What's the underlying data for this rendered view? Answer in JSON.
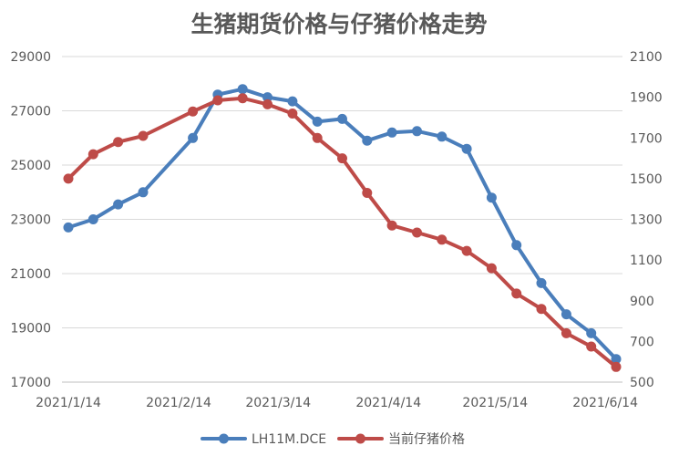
{
  "chart_data": {
    "type": "line",
    "title": "生猪期货价格与仔猪价格走势",
    "x": [
      "2021/1/14",
      "2021/1/21",
      "2021/1/28",
      "2021/2/4",
      "2021/2/18",
      "2021/2/25",
      "2021/3/4",
      "2021/3/11",
      "2021/3/18",
      "2021/3/25",
      "2021/4/1",
      "2021/4/8",
      "2021/4/15",
      "2021/4/22",
      "2021/4/29",
      "2021/5/6",
      "2021/5/13",
      "2021/5/20",
      "2021/5/27",
      "2021/6/3",
      "2021/6/10",
      "2021/6/17"
    ],
    "x_ticks": [
      "2021/1/14",
      "2021/2/14",
      "2021/3/14",
      "2021/4/14",
      "2021/5/14",
      "2021/6/14"
    ],
    "y_left": {
      "range": [
        17000,
        29000
      ],
      "ticks": [
        "17000",
        "19000",
        "21000",
        "23000",
        "25000",
        "27000",
        "29000"
      ]
    },
    "y_right": {
      "range": [
        500,
        2100
      ],
      "ticks": [
        "500",
        "700",
        "900",
        "1100",
        "1300",
        "1500",
        "1700",
        "1900",
        "2100"
      ]
    },
    "series": [
      {
        "name": "LH11M.DCE",
        "axis": "left",
        "color": "#4a7ebb",
        "points": [
          [
            "2021/1/14",
            22700
          ],
          [
            "2021/1/21",
            23000
          ],
          [
            "2021/1/28",
            23550
          ],
          [
            "2021/2/4",
            24000
          ],
          [
            "2021/2/18",
            26000
          ],
          [
            "2021/2/25",
            27600
          ],
          [
            "2021/3/4",
            27800
          ],
          [
            "2021/3/11",
            27500
          ],
          [
            "2021/3/18",
            27350
          ],
          [
            "2021/3/25",
            26600
          ],
          [
            "2021/4/1",
            26700
          ],
          [
            "2021/4/8",
            25900
          ],
          [
            "2021/4/15",
            26200
          ],
          [
            "2021/4/22",
            26250
          ],
          [
            "2021/4/29",
            26050
          ],
          [
            "2021/5/6",
            25600
          ],
          [
            "2021/5/13",
            23800
          ],
          [
            "2021/5/20",
            22050
          ],
          [
            "2021/5/27",
            20650
          ],
          [
            "2021/6/3",
            19500
          ],
          [
            "2021/6/10",
            18800
          ],
          [
            "2021/6/17",
            17850
          ]
        ]
      },
      {
        "name": "当前仔猪价格",
        "axis": "right",
        "color": "#be4b48",
        "points": [
          [
            "2021/1/14",
            1500
          ],
          [
            "2021/1/21",
            1620
          ],
          [
            "2021/1/28",
            1680
          ],
          [
            "2021/2/4",
            1710
          ],
          [
            "2021/2/18",
            1830
          ],
          [
            "2021/2/25",
            1885
          ],
          [
            "2021/3/4",
            1895
          ],
          [
            "2021/3/11",
            1865
          ],
          [
            "2021/3/18",
            1820
          ],
          [
            "2021/3/25",
            1700
          ],
          [
            "2021/4/1",
            1600
          ],
          [
            "2021/4/8",
            1430
          ],
          [
            "2021/4/15",
            1270
          ],
          [
            "2021/4/22",
            1235
          ],
          [
            "2021/4/29",
            1200
          ],
          [
            "2021/5/6",
            1145
          ],
          [
            "2021/5/13",
            1060
          ],
          [
            "2021/5/20",
            935
          ],
          [
            "2021/5/27",
            860
          ],
          [
            "2021/6/3",
            740
          ],
          [
            "2021/6/10",
            675
          ],
          [
            "2021/6/17",
            575
          ]
        ]
      }
    ],
    "grid": "horizontal",
    "legend_position": "bottom"
  }
}
